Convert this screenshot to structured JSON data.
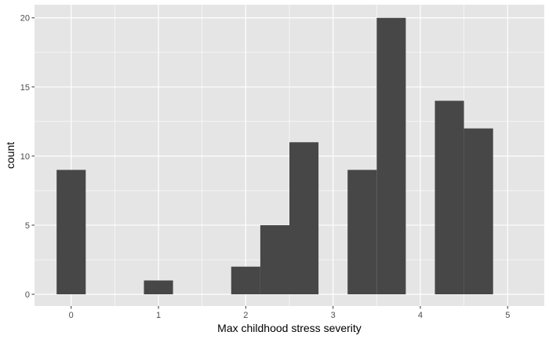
{
  "chart_data": {
    "type": "bar",
    "xlabel": "Max childhood stress severity",
    "ylabel": "count",
    "xlim": [
      -0.42,
      5.42
    ],
    "ylim": [
      -0.85,
      20.95
    ],
    "xticks": [
      0,
      1,
      2,
      3,
      4,
      5
    ],
    "yticks": [
      0,
      5,
      10,
      15,
      20
    ],
    "grid": true,
    "bins": [
      {
        "x0": -0.1667,
        "x1": 0.1667,
        "count": 9
      },
      {
        "x0": 0.1667,
        "x1": 0.5,
        "count": 0
      },
      {
        "x0": 0.5,
        "x1": 0.8333,
        "count": 0
      },
      {
        "x0": 0.8333,
        "x1": 1.1667,
        "count": 1
      },
      {
        "x0": 1.1667,
        "x1": 1.5,
        "count": 0
      },
      {
        "x0": 1.5,
        "x1": 1.8333,
        "count": 0
      },
      {
        "x0": 1.8333,
        "x1": 2.1667,
        "count": 2
      },
      {
        "x0": 2.1667,
        "x1": 2.5,
        "count": 5
      },
      {
        "x0": 2.5,
        "x1": 2.8333,
        "count": 11
      },
      {
        "x0": 2.8333,
        "x1": 3.1667,
        "count": 0
      },
      {
        "x0": 3.1667,
        "x1": 3.5,
        "count": 9
      },
      {
        "x0": 3.5,
        "x1": 3.8333,
        "count": 20
      },
      {
        "x0": 3.8333,
        "x1": 4.1667,
        "count": 0
      },
      {
        "x0": 4.1667,
        "x1": 4.5,
        "count": 14
      },
      {
        "x0": 4.5,
        "x1": 4.8333,
        "count": 12
      }
    ],
    "colors": {
      "panel": "#e5e5e5",
      "grid_major": "#ffffff",
      "bar_fill": "#474747",
      "tick_text": "#4d4d4d",
      "tick_mark": "#333333"
    }
  }
}
